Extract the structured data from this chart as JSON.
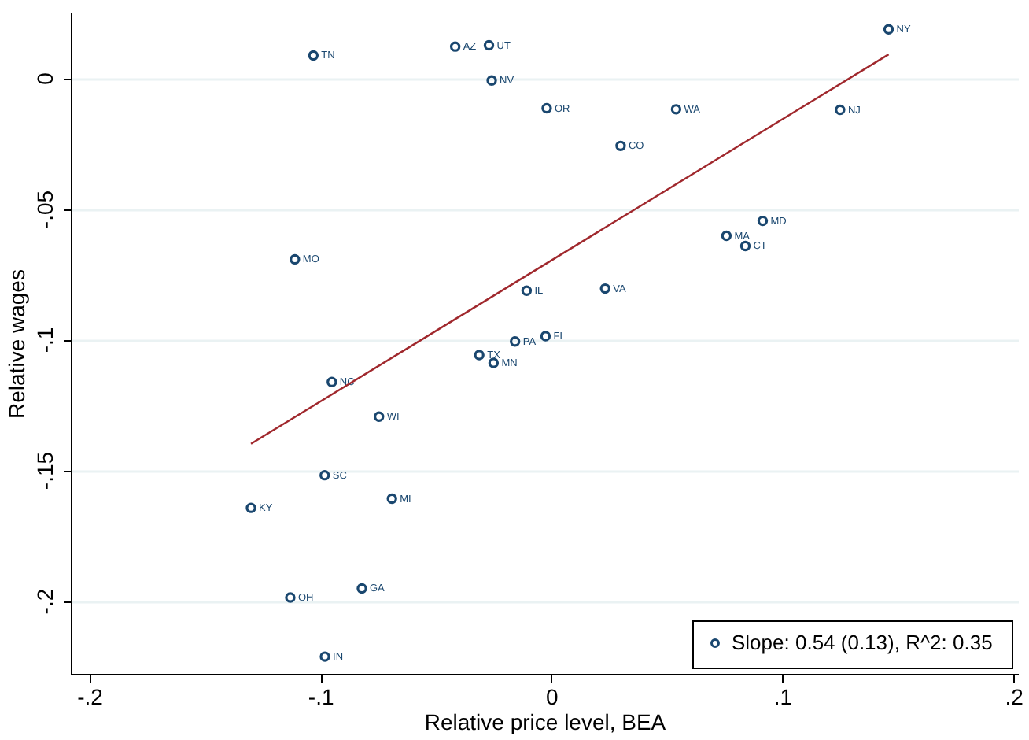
{
  "chart_data": {
    "type": "scatter",
    "xlabel": "Relative price level, BEA",
    "ylabel": "Relative wages",
    "xlim": [
      -0.208,
      0.202
    ],
    "ylim": [
      -0.228,
      0.025
    ],
    "xticks": [
      {
        "value": -0.2,
        "label": "-.2"
      },
      {
        "value": -0.1,
        "label": "-.1"
      },
      0,
      {
        "value": 0.1,
        "label": ".1"
      },
      {
        "value": 0.2,
        "label": ".2"
      }
    ],
    "yticks": [
      {
        "value": -0.2,
        "label": "-.2"
      },
      {
        "value": -0.15,
        "label": "-.15"
      },
      {
        "value": -0.1,
        "label": "-.1"
      },
      {
        "value": -0.05,
        "label": "-.05"
      },
      0
    ],
    "grid": "y",
    "legend": "bottom right",
    "marker": "circle",
    "series": [
      {
        "name": "Slope:  0.54 (0.13), R^2: 0.35",
        "color": "#1a476f",
        "x": [
          -0.103,
          -0.0416,
          -0.027,
          -0.0258,
          -0.002,
          0.054,
          0.03,
          0.125,
          0.146,
          0.0915,
          0.0758,
          0.084,
          -0.0107,
          0.0233,
          -0.0025,
          -0.0157,
          -0.025,
          -0.0312,
          -0.111,
          -0.095,
          -0.0746,
          -0.0981,
          -0.069,
          -0.13,
          -0.082,
          -0.113,
          -0.098
        ],
        "values": [
          0.0086,
          0.012,
          0.0125,
          -0.001,
          -0.0116,
          -0.012,
          -0.026,
          -0.0122,
          0.0186,
          -0.0547,
          -0.0604,
          -0.0643,
          -0.0814,
          -0.0806,
          -0.0988,
          -0.1008,
          -0.109,
          -0.106,
          -0.0694,
          -0.1163,
          -0.1296,
          -0.152,
          -0.161,
          -0.1645,
          -0.1953,
          -0.1988,
          -0.2214
        ],
        "value_labels": [
          "TN",
          "AZ",
          "UT",
          "NV",
          "OR",
          "WA",
          "CO",
          "NJ",
          "NY",
          "MD",
          "MA",
          "CT",
          "IL",
          "VA",
          "FL",
          "PA",
          "MN",
          "TX",
          "MO",
          "NC",
          "WI",
          "SC",
          "MI",
          "KY",
          "GA",
          "OH",
          "IN"
        ]
      },
      {
        "type": "line",
        "color": "#a0282d",
        "x": [
          -0.13,
          0.146
        ],
        "values": [
          -0.14,
          0.009
        ],
        "line_style": "solid",
        "marker": "none"
      }
    ]
  }
}
